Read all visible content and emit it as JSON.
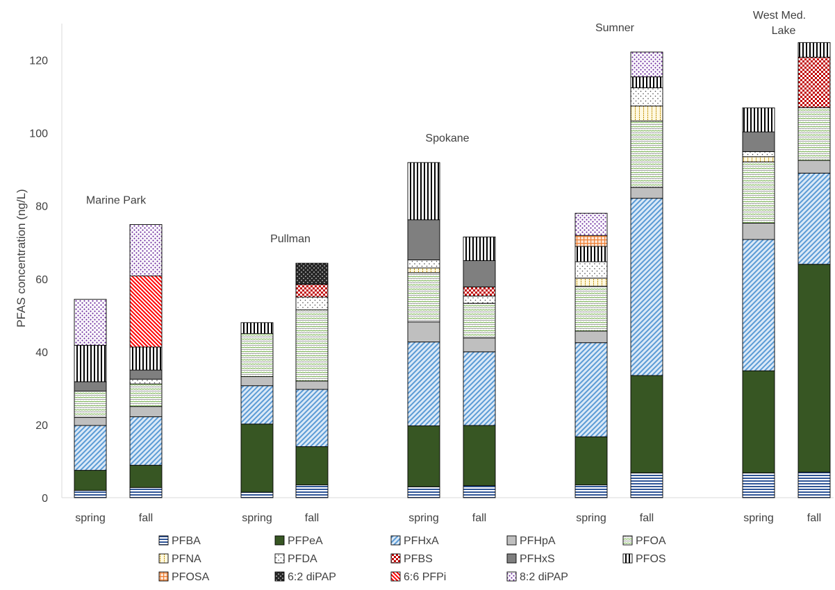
{
  "chart_data": {
    "type": "bar",
    "stacked": true,
    "ylabel": "PFAS concentration (ng/L)",
    "ylim": [
      0,
      130
    ],
    "yticks": [
      0,
      20,
      40,
      60,
      80,
      100,
      120
    ],
    "grid": false,
    "legend_position": "bottom",
    "groups": [
      "Marine Park",
      "Pullman",
      "Spokane",
      "Sumner",
      "West Med. Lake"
    ],
    "categories": [
      "spring",
      "fall",
      "spring",
      "fall",
      "spring",
      "fall",
      "spring",
      "fall",
      "spring",
      "fall"
    ],
    "series": [
      {
        "name": "PFBA",
        "color": "#2f5597",
        "pattern": "hlines",
        "values": [
          2,
          2.8,
          1.5,
          3.5,
          3,
          3.3,
          3.5,
          6.8,
          6.8,
          7
        ]
      },
      {
        "name": "PFPeA",
        "color": "#375623",
        "pattern": "solid",
        "values": [
          5.5,
          6.1,
          18.7,
          10.5,
          16.7,
          16.5,
          13.2,
          26.7,
          28,
          57
        ]
      },
      {
        "name": "PFHxA",
        "color": "#5b9bd5",
        "pattern": "diag",
        "values": [
          12.3,
          13.3,
          10.5,
          15.7,
          23,
          20.2,
          25.8,
          48.6,
          36,
          25
        ]
      },
      {
        "name": "PFHpA",
        "color": "#bfbfbf",
        "pattern": "solid",
        "values": [
          2.2,
          2.8,
          2.5,
          2.3,
          5.5,
          3.8,
          3.2,
          3,
          4.5,
          3.5
        ]
      },
      {
        "name": "PFOA",
        "color": "#70ad47",
        "pattern": "wavy",
        "values": [
          7.2,
          6.2,
          11.8,
          19.5,
          13.5,
          9.5,
          12.3,
          18.2,
          16.8,
          14.5
        ]
      },
      {
        "name": "PFNA",
        "color": "#bf9000",
        "pattern": "dotcol",
        "values": [
          0,
          0,
          0,
          0,
          1.3,
          0,
          2.2,
          4.1,
          1.4,
          0
        ]
      },
      {
        "name": "PFDA",
        "color": "#404040",
        "pattern": "dots",
        "values": [
          0,
          1.3,
          0,
          3.5,
          2.2,
          2.0,
          4.5,
          5,
          1.4,
          0
        ]
      },
      {
        "name": "PFBS",
        "color": "#c00000",
        "pattern": "checker",
        "values": [
          0,
          0,
          0,
          3.5,
          0,
          2.5,
          0,
          0,
          0,
          13.8
        ]
      },
      {
        "name": "PFHxS",
        "color": "#7f7f7f",
        "pattern": "solid",
        "values": [
          2.6,
          2.5,
          0,
          0,
          11,
          7.2,
          0,
          0,
          5.4,
          0
        ]
      },
      {
        "name": "PFOS",
        "color": "#000000",
        "pattern": "vlines",
        "values": [
          10,
          6.3,
          3,
          0,
          15.7,
          6.5,
          4.2,
          3,
          6.6,
          4
        ]
      },
      {
        "name": "PFOSA",
        "color": "#ed7d31",
        "pattern": "grid",
        "values": [
          0,
          0,
          0,
          0,
          0,
          0,
          3,
          0,
          0,
          0
        ]
      },
      {
        "name": "6:2 diPAP",
        "color": "#262626",
        "pattern": "darkdots",
        "values": [
          0,
          0,
          0,
          5.8,
          0,
          0,
          0,
          0,
          0,
          0
        ]
      },
      {
        "name": "6:6 PFPi",
        "color": "#ff0000",
        "pattern": "diagred",
        "values": [
          0,
          19.5,
          0,
          0,
          0,
          0,
          0,
          0,
          0,
          0
        ]
      },
      {
        "name": "8:2 diPAP",
        "color": "#7030a0",
        "pattern": "purpledots",
        "values": [
          12.6,
          14.1,
          0,
          0,
          0,
          0,
          6.1,
          6.8,
          0,
          0
        ]
      }
    ]
  }
}
